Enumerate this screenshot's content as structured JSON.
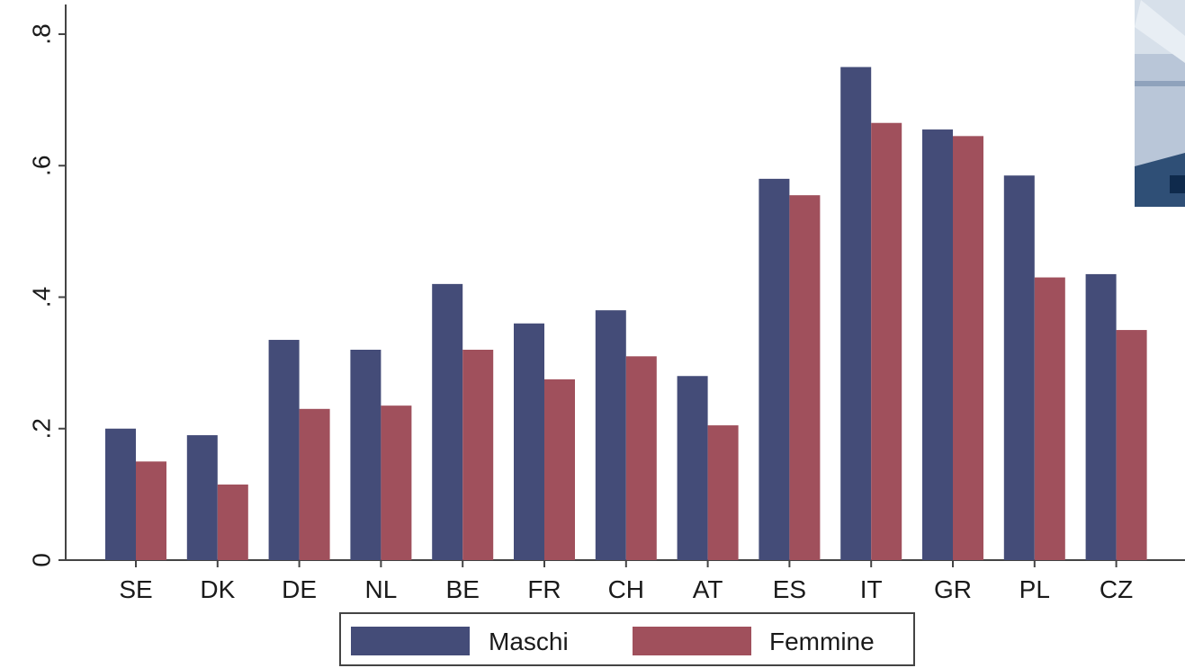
{
  "chart_data": {
    "type": "bar",
    "categories": [
      "SE",
      "DK",
      "DE",
      "NL",
      "BE",
      "FR",
      "CH",
      "AT",
      "ES",
      "IT",
      "GR",
      "PL",
      "CZ"
    ],
    "series": [
      {
        "name": "Maschi",
        "color": "#444c78",
        "values": [
          0.2,
          0.19,
          0.335,
          0.32,
          0.42,
          0.36,
          0.38,
          0.28,
          0.58,
          0.75,
          0.655,
          0.585,
          0.435
        ]
      },
      {
        "name": "Femmine",
        "color": "#a0505c",
        "values": [
          0.15,
          0.115,
          0.23,
          0.235,
          0.32,
          0.275,
          0.31,
          0.205,
          0.555,
          0.665,
          0.645,
          0.43,
          0.35
        ]
      }
    ],
    "ylim": [
      0,
      0.8
    ],
    "yticks": [
      {
        "value": 0,
        "label": "0"
      },
      {
        "value": 0.2,
        "label": ".2"
      },
      {
        "value": 0.4,
        "label": ".4"
      },
      {
        "value": 0.6,
        "label": ".6"
      },
      {
        "value": 0.8,
        "label": ".8"
      }
    ],
    "title": "",
    "xlabel": "",
    "ylabel": "",
    "grid": false,
    "legend_position": "bottom"
  }
}
